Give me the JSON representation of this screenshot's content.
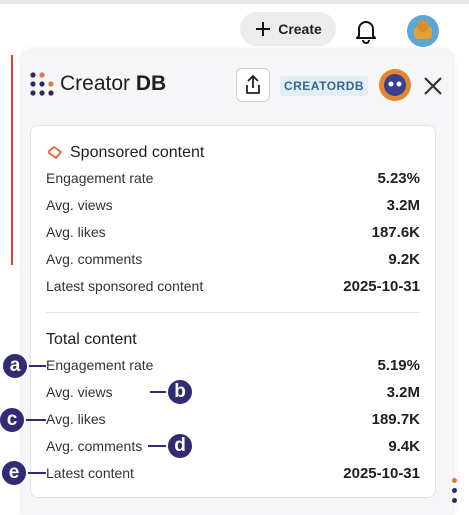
{
  "topbar": {
    "create": "Create"
  },
  "panel": {
    "logo": {
      "name": "Creator",
      "suffix": "DB"
    },
    "badge": "CREATORDB"
  },
  "sponsored": {
    "title": "Sponsored content",
    "rows": [
      [
        "Engagement rate",
        "5.23%"
      ],
      [
        "Avg. views",
        "3.2M"
      ],
      [
        "Avg. likes",
        "187.6K"
      ],
      [
        "Avg. comments",
        "9.2K"
      ],
      [
        "Latest sponsored content",
        "2025-10-31"
      ]
    ]
  },
  "total": {
    "title": "Total content",
    "rows": [
      [
        "Engagement rate",
        "5.19%"
      ],
      [
        "Avg. views",
        "3.2M"
      ],
      [
        "Avg. likes",
        "189.7K"
      ],
      [
        "Avg. comments",
        "9.4K"
      ],
      [
        "Latest content",
        "2025-10-31"
      ]
    ]
  },
  "annotations": [
    "a",
    "b",
    "c",
    "d",
    "e"
  ]
}
